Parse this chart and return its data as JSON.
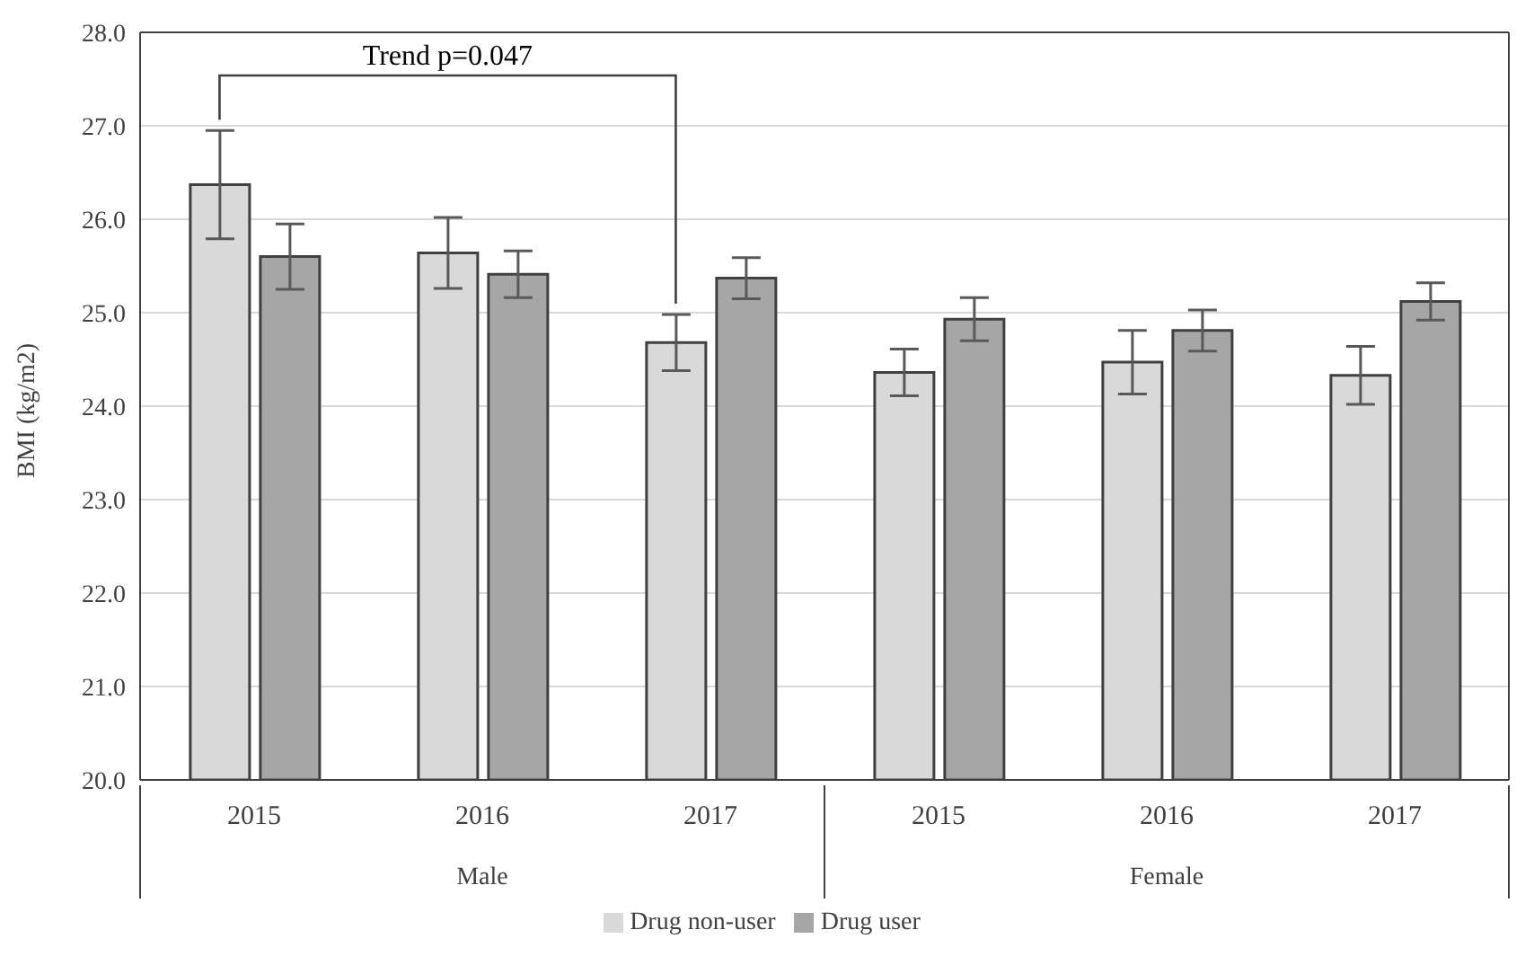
{
  "chart_data": {
    "type": "bar",
    "ylabel": "BMI (kg/m2)",
    "categories": [
      "2015",
      "2016",
      "2017",
      "2015",
      "2016",
      "2017"
    ],
    "series": [
      {
        "name": "Drug non-user",
        "color": "#d9d9d9",
        "values": [
          26.37,
          25.64,
          24.68,
          24.36,
          24.47,
          24.33
        ],
        "errors": [
          0.58,
          0.38,
          0.3,
          0.25,
          0.34,
          0.31
        ]
      },
      {
        "name": "Drug user",
        "color": "#a6a6a6",
        "values": [
          25.6,
          25.41,
          25.37,
          24.93,
          24.81,
          25.12
        ],
        "errors": [
          0.35,
          0.25,
          0.22,
          0.23,
          0.22,
          0.2
        ]
      }
    ],
    "ylim": [
      20,
      28
    ],
    "yticks": [
      {
        "value": 20,
        "label": "20.0"
      },
      {
        "value": 21,
        "label": "21.0"
      },
      {
        "value": 22,
        "label": "22.0"
      },
      {
        "value": 23,
        "label": "23.0"
      },
      {
        "value": 24,
        "label": "24.0"
      },
      {
        "value": 25,
        "label": "25.0"
      },
      {
        "value": 26,
        "label": "26.0"
      },
      {
        "value": 27,
        "label": "27.0"
      },
      {
        "value": 28,
        "label": "28.0"
      }
    ],
    "grid": "y",
    "legend": "bottom",
    "annotations": [
      "Trend p=0.047",
      "Male",
      "Female"
    ]
  }
}
